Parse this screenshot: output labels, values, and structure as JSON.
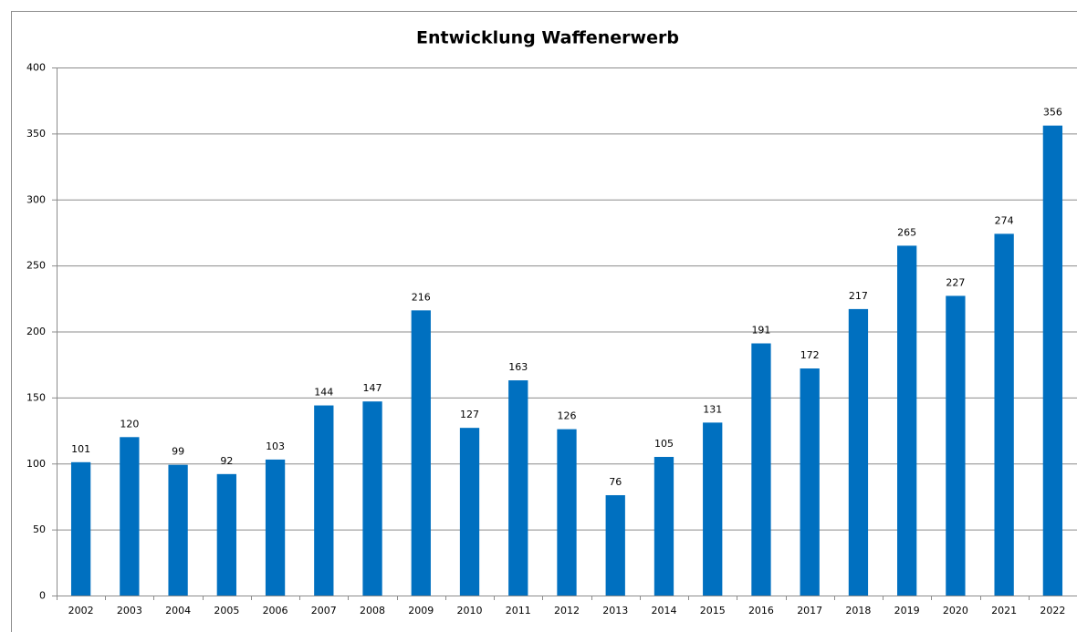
{
  "chart_data": {
    "type": "bar",
    "title": "Entwicklung Waffenerwerb",
    "categories": [
      "2002",
      "2003",
      "2004",
      "2005",
      "2006",
      "2007",
      "2008",
      "2009",
      "2010",
      "2011",
      "2012",
      "2013",
      "2014",
      "2015",
      "2016",
      "2017",
      "2018",
      "2019",
      "2020",
      "2021",
      "2022"
    ],
    "values": [
      101,
      120,
      99,
      92,
      103,
      144,
      147,
      216,
      127,
      163,
      126,
      76,
      105,
      131,
      191,
      172,
      217,
      265,
      227,
      274,
      356
    ],
    "color": "#0070c0",
    "ylim": [
      0,
      400
    ],
    "yticks": [
      0,
      50,
      100,
      150,
      200,
      250,
      300,
      350,
      400
    ],
    "grid": true
  }
}
